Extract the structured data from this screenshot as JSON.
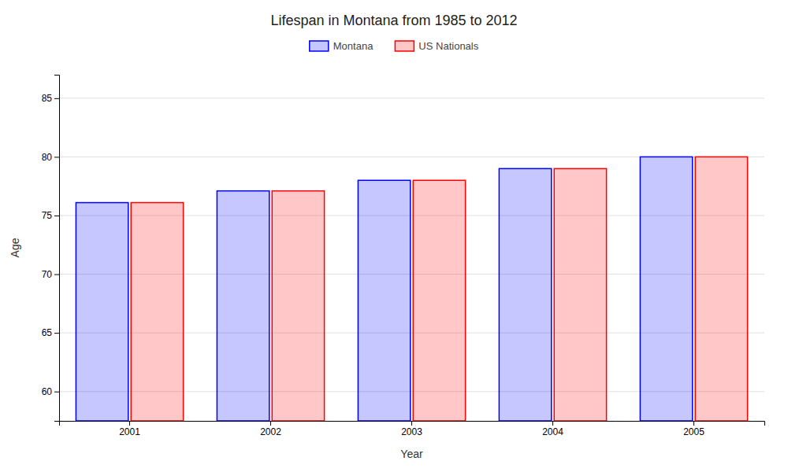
{
  "chart_data": {
    "type": "bar",
    "title": "Lifespan in Montana from 1985 to 2012",
    "x_label": "Year",
    "y_label": "Age",
    "categories": [
      "2001",
      "2002",
      "2003",
      "2004",
      "2005"
    ],
    "series": [
      {
        "name": "Montana",
        "color": "#0000ff",
        "values": [
          76.1,
          77.1,
          78.0,
          79.0,
          80.0
        ]
      },
      {
        "name": "US Nationals",
        "color": "#ff0000",
        "values": [
          76.1,
          77.1,
          78.0,
          79.0,
          80.0
        ]
      }
    ],
    "ylim": [
      57.5,
      87
    ],
    "yticks": [
      60,
      65,
      70,
      75,
      80,
      85
    ],
    "grid": true,
    "legend": "top"
  }
}
